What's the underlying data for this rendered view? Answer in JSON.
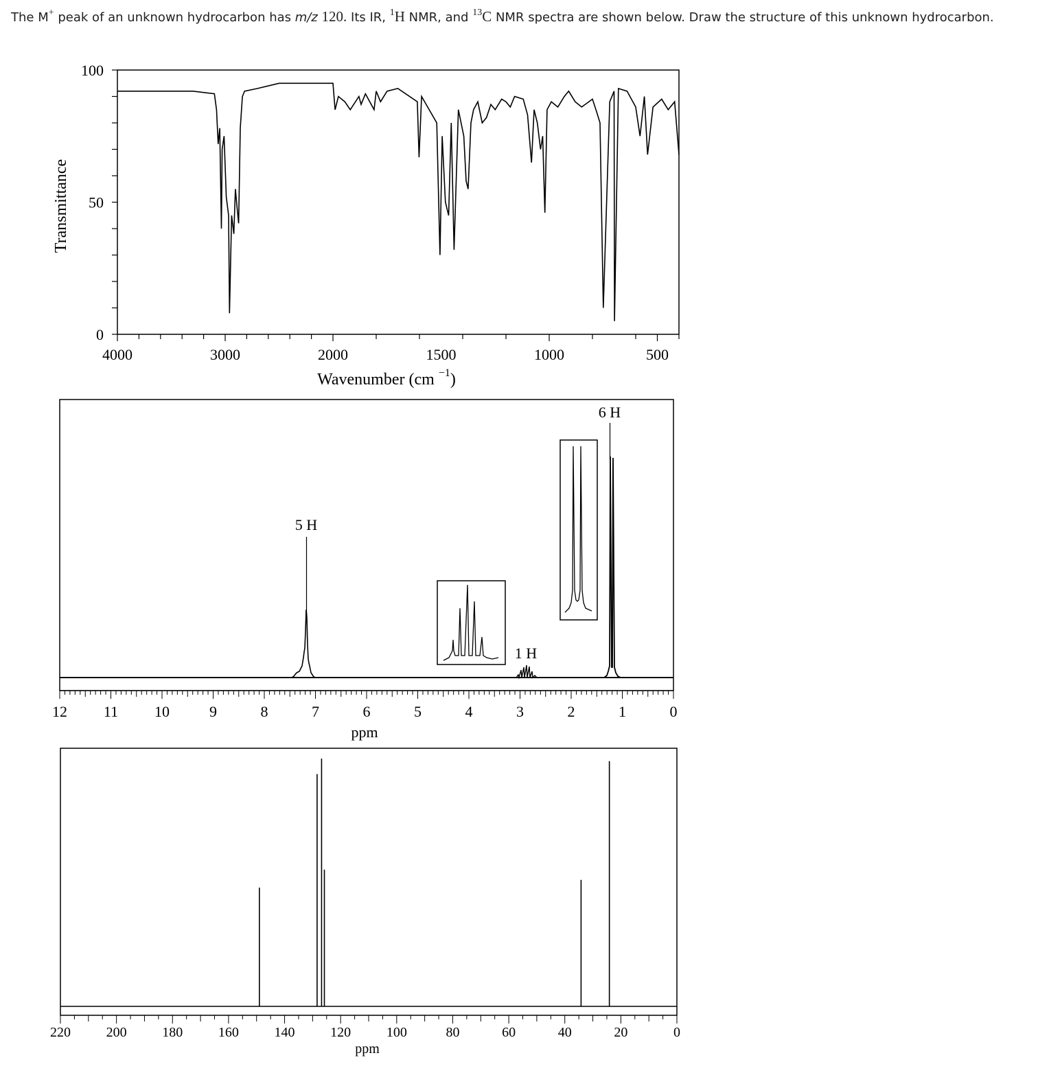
{
  "question": {
    "p1": "The M",
    "sup_plus": "+",
    "p2": "peak of an unknown hydrocarbon has",
    "mz": "m/z",
    "mz_value": "120.",
    "p3": "Its IR,",
    "sup_1": "1",
    "h_letter": "H",
    "p4": "NMR, and",
    "sup_13": "13",
    "c_letter": "C",
    "p5": "NMR spectra are shown below. Draw the structure of this unknown hydrocarbon."
  },
  "chart_data": [
    {
      "type": "line",
      "title": "",
      "xlabel": "Wavenumber (cm",
      "xlabel_sup": "−1",
      "xlabel_close": ")",
      "ylabel": "Transmittance",
      "xlim": [
        4000,
        400
      ],
      "ylim": [
        0,
        100
      ],
      "x_ticks": [
        "4000",
        "3000",
        "2000",
        "1500",
        "1000",
        "500"
      ],
      "y_ticks": [
        "0",
        "50",
        "100"
      ],
      "grid": false,
      "series": [
        {
          "x": [
            4000,
            3500,
            3300,
            3100,
            3080,
            3065,
            3050,
            3035,
            3028,
            3010,
            2990,
            2968,
            2960,
            2940,
            2920,
            2905,
            2890,
            2875,
            2860,
            2840,
            2820,
            2700,
            2500,
            2000,
            1990,
            1975,
            1945,
            1920,
            1880,
            1870,
            1850,
            1810,
            1800,
            1780,
            1750,
            1700,
            1610,
            1602,
            1590,
            1520,
            1505,
            1495,
            1480,
            1465,
            1453,
            1440,
            1420,
            1395,
            1384,
            1375,
            1362,
            1350,
            1330,
            1310,
            1290,
            1270,
            1250,
            1220,
            1200,
            1180,
            1160,
            1120,
            1100,
            1082,
            1070,
            1055,
            1040,
            1030,
            1020,
            1010,
            990,
            960,
            930,
            910,
            880,
            850,
            800,
            780,
            765,
            750,
            720,
            700,
            698,
            680,
            640,
            600,
            580,
            560,
            545,
            520,
            480,
            450,
            420,
            400
          ],
          "y": [
            92,
            92,
            92,
            91,
            85,
            72,
            78,
            40,
            70,
            75,
            52,
            45,
            8,
            45,
            38,
            55,
            48,
            42,
            78,
            90,
            92,
            93,
            95,
            95,
            85,
            90,
            88,
            85,
            90,
            87,
            91,
            85,
            92,
            88,
            92,
            93,
            88,
            67,
            90,
            80,
            30,
            75,
            50,
            45,
            80,
            32,
            85,
            75,
            58,
            55,
            80,
            85,
            88,
            80,
            82,
            87,
            85,
            89,
            88,
            86,
            90,
            89,
            83,
            65,
            85,
            80,
            70,
            75,
            46,
            85,
            88,
            86,
            90,
            92,
            88,
            86,
            89,
            84,
            80,
            10,
            88,
            92,
            5,
            93,
            92,
            86,
            75,
            90,
            68,
            86,
            89,
            85,
            88,
            68
          ]
        }
      ]
    },
    {
      "type": "line",
      "title": "",
      "xlabel": "ppm",
      "ylabel": "",
      "xlim": [
        12,
        0
      ],
      "x_ticks": [
        "12",
        "11",
        "10",
        "9",
        "8",
        "7",
        "6",
        "5",
        "4",
        "3",
        "2",
        "1",
        "0"
      ],
      "grid": false,
      "annotations": [
        "5 H",
        "1 H",
        "6 H"
      ],
      "series": [
        {
          "signals": [
            {
              "shift": 7.2,
              "integration": "5 H",
              "multiplicity": "multiplet"
            },
            {
              "shift": 2.9,
              "integration": "1 H",
              "multiplicity": "septet"
            },
            {
              "shift": 1.25,
              "integration": "6 H",
              "multiplicity": "doublet"
            }
          ]
        }
      ]
    },
    {
      "type": "bar",
      "title": "",
      "xlabel": "ppm",
      "ylabel": "",
      "xlim": [
        220,
        0
      ],
      "x_ticks": [
        "220",
        "200",
        "180",
        "160",
        "140",
        "120",
        "100",
        "80",
        "60",
        "40",
        "20",
        "0"
      ],
      "grid": false,
      "series": [
        {
          "x": [
            149,
            128.4,
            126.8,
            125.8,
            34.2,
            24.1
          ],
          "y": [
            0.46,
            0.9,
            0.96,
            0.53,
            0.49,
            0.95
          ]
        }
      ]
    }
  ]
}
